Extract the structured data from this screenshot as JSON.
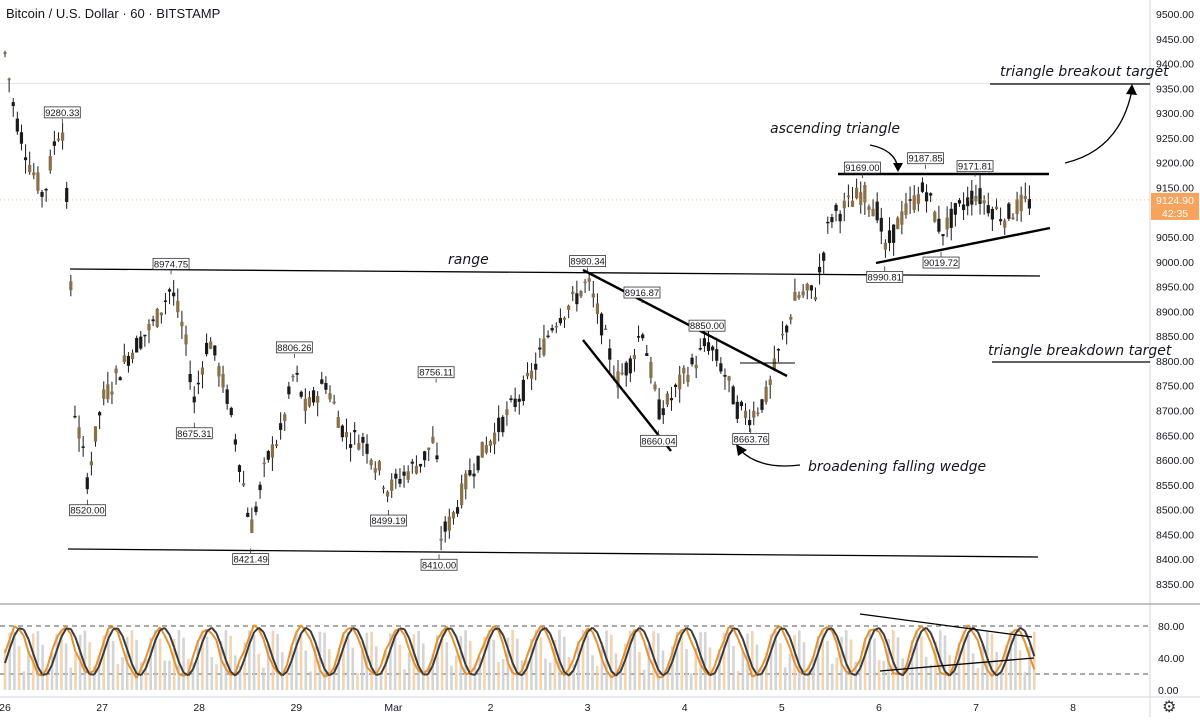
{
  "chart_data": {
    "type": "candlestick",
    "title": "Bitcoin / U.S. Dollar · 60 · BITSTAMP",
    "price_axis": {
      "ylim": [
        8300,
        9500
      ],
      "ticks": [
        "9500.00",
        "9450.00",
        "9400.00",
        "9350.00",
        "9300.00",
        "9250.00",
        "9200.00",
        "9150.00",
        "9100.00",
        "9050.00",
        "9000.00",
        "8950.00",
        "8900.00",
        "8850.00",
        "8800.00",
        "8750.00",
        "8700.00",
        "8650.00",
        "8600.00",
        "8550.00",
        "8500.00",
        "8450.00",
        "8400.00",
        "8350.00"
      ]
    },
    "x_axis": {
      "ticks": [
        "26",
        "27",
        "28",
        "29",
        "Mar",
        "2",
        "3",
        "4",
        "5",
        "6",
        "7",
        "8"
      ]
    },
    "last_price": "9124.90",
    "countdown": "42:35",
    "price_labels": [
      {
        "text": "9280.33",
        "value": 9280.33,
        "day": 0.59
      },
      {
        "text": "8520.00",
        "value": 8520.0,
        "day": 0.85
      },
      {
        "text": "8974.75",
        "value": 8974.75,
        "day": 1.71
      },
      {
        "text": "8675.31",
        "value": 8675.31,
        "day": 1.95
      },
      {
        "text": "8421.49",
        "value": 8421.49,
        "day": 2.53
      },
      {
        "text": "8806.26",
        "value": 8806.26,
        "day": 2.98
      },
      {
        "text": "8499.19",
        "value": 8499.19,
        "day": 3.95
      },
      {
        "text": "8756.11",
        "value": 8756.11,
        "day": 4.44
      },
      {
        "text": "8410.00",
        "value": 8410.0,
        "day": 4.47
      },
      {
        "text": "8980.34",
        "value": 8980.34,
        "day": 6.0
      },
      {
        "text": "8916.87",
        "value": 8916.87,
        "day": 6.56
      },
      {
        "text": "8660.04",
        "value": 8660.04,
        "day": 6.73
      },
      {
        "text": "8850.00",
        "value": 8850.0,
        "day": 7.23
      },
      {
        "text": "8663.76",
        "value": 8663.76,
        "day": 7.68
      },
      {
        "text": "9169.00",
        "value": 9169.0,
        "day": 8.83
      },
      {
        "text": "9187.85",
        "value": 9187.85,
        "day": 9.48
      },
      {
        "text": "9171.81",
        "value": 9171.81,
        "day": 9.99
      },
      {
        "text": "8990.81",
        "value": 8990.81,
        "day": 9.06
      },
      {
        "text": "9019.72",
        "value": 9019.72,
        "day": 9.64
      }
    ],
    "annotations": [
      {
        "text": "range"
      },
      {
        "text": "ascending triangle"
      },
      {
        "text": "triangle breakout target"
      },
      {
        "text": "triangle breakdown target"
      },
      {
        "text": "broadening falling wedge"
      }
    ],
    "oscillator": {
      "ylim": [
        -5,
        95
      ],
      "ticks": [
        "80.00",
        "40.00",
        "0.00"
      ],
      "dashed_levels": [
        80,
        20
      ]
    }
  },
  "colors": {
    "candle": "#8b6f47",
    "line": "#000000",
    "accent": "#f7a35c",
    "osc_orange": "#e8912d",
    "osc_dark": "#3a3a3a",
    "hist": "#c9c9c9"
  }
}
